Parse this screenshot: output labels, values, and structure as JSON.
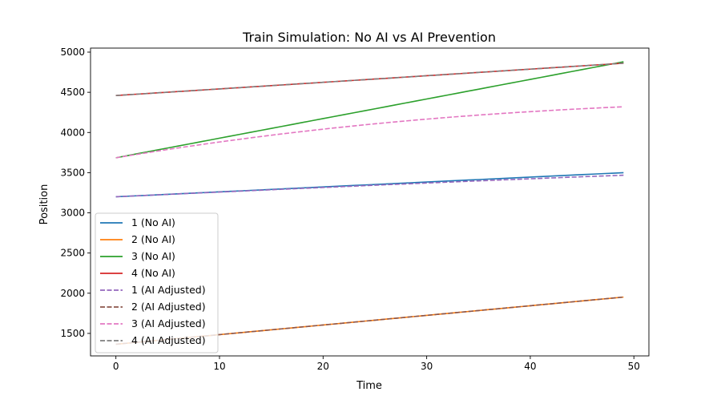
{
  "chart_data": {
    "type": "line",
    "title": "Train Simulation: No AI vs AI Prevention",
    "xlabel": "Time",
    "ylabel": "Position",
    "xlim": [
      -2.45,
      51.45
    ],
    "ylim": [
      1220,
      5050
    ],
    "xticks": [
      0,
      10,
      20,
      30,
      40,
      50
    ],
    "yticks": [
      1500,
      2000,
      2500,
      3000,
      3500,
      4000,
      4500,
      5000
    ],
    "grid": false,
    "legend_position": "lower-left",
    "x": [
      0,
      49
    ],
    "series": [
      {
        "name": "1 (No AI)",
        "color": "#1f77b4",
        "dash": "solid",
        "y0": 3200,
        "y1": 3500,
        "curvature": 0
      },
      {
        "name": "2 (No AI)",
        "color": "#ff7f0e",
        "dash": "solid",
        "y0": 1365,
        "y1": 1952,
        "curvature": 0
      },
      {
        "name": "3 (No AI)",
        "color": "#2ca02c",
        "dash": "solid",
        "y0": 3685,
        "y1": 4880,
        "curvature": 0
      },
      {
        "name": "4 (No AI)",
        "color": "#d62728",
        "dash": "solid",
        "y0": 4460,
        "y1": 4862,
        "curvature": 0
      },
      {
        "name": "1 (AI Adjusted)",
        "color": "#9467bd",
        "dash": "dashed",
        "y0": 3200,
        "y1": 3468,
        "curvature": 0.2
      },
      {
        "name": "2 (AI Adjusted)",
        "color": "#8c564b",
        "dash": "dashed",
        "y0": 1365,
        "y1": 1952,
        "curvature": 0
      },
      {
        "name": "3 (AI Adjusted)",
        "color": "#e377c2",
        "dash": "dashed",
        "y0": 3685,
        "y1": 4320,
        "curvature": 0.55
      },
      {
        "name": "4 (AI Adjusted)",
        "color": "#7f7f7f",
        "dash": "dashed",
        "y0": 4460,
        "y1": 4862,
        "curvature": 0
      }
    ]
  }
}
